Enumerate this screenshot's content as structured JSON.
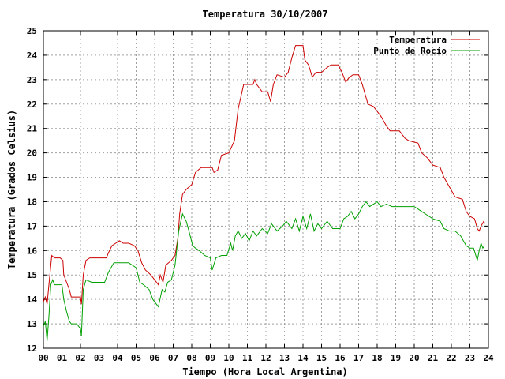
{
  "chart_data": {
    "type": "line",
    "title": "Temperatura 30/10/2007",
    "xlabel": "Tiempo (Hora Local Argentina)",
    "ylabel": "Temperatura (Grados Celsius)",
    "xlim": [
      0,
      24
    ],
    "ylim": [
      12,
      25
    ],
    "x_ticks": [
      0,
      1,
      2,
      3,
      4,
      5,
      6,
      7,
      8,
      9,
      10,
      11,
      12,
      13,
      14,
      15,
      16,
      17,
      18,
      19,
      20,
      21,
      22,
      23,
      24
    ],
    "x_tick_labels": [
      "00",
      "01",
      "02",
      "03",
      "04",
      "05",
      "06",
      "07",
      "08",
      "09",
      "10",
      "11",
      "12",
      "13",
      "14",
      "15",
      "16",
      "17",
      "18",
      "19",
      "20",
      "21",
      "22",
      "23",
      "24"
    ],
    "y_ticks": [
      12,
      13,
      14,
      15,
      16,
      17,
      18,
      19,
      20,
      21,
      22,
      23,
      24,
      25
    ],
    "y_tick_labels": [
      "12",
      "13",
      "14",
      "15",
      "16",
      "17",
      "18",
      "19",
      "20",
      "21",
      "22",
      "23",
      "24",
      "25"
    ],
    "grid": true,
    "legend_position": "top-right",
    "series": [
      {
        "name": "Temperatura",
        "color": "#cc0000",
        "points": [
          [
            0.0,
            13.9
          ],
          [
            0.1,
            14.1
          ],
          [
            0.2,
            13.8
          ],
          [
            0.3,
            14.6
          ],
          [
            0.45,
            15.8
          ],
          [
            0.6,
            15.7
          ],
          [
            0.9,
            15.7
          ],
          [
            1.05,
            15.6
          ],
          [
            1.1,
            15.0
          ],
          [
            1.25,
            14.7
          ],
          [
            1.4,
            14.4
          ],
          [
            1.5,
            14.1
          ],
          [
            1.7,
            14.1
          ],
          [
            2.0,
            14.1
          ],
          [
            2.05,
            13.8
          ],
          [
            2.15,
            15.0
          ],
          [
            2.3,
            15.6
          ],
          [
            2.5,
            15.7
          ],
          [
            3.0,
            15.7
          ],
          [
            3.4,
            15.7
          ],
          [
            3.5,
            15.9
          ],
          [
            3.7,
            16.2
          ],
          [
            3.9,
            16.3
          ],
          [
            4.1,
            16.4
          ],
          [
            4.3,
            16.3
          ],
          [
            4.6,
            16.3
          ],
          [
            4.9,
            16.2
          ],
          [
            5.1,
            16.0
          ],
          [
            5.3,
            15.5
          ],
          [
            5.5,
            15.2
          ],
          [
            5.8,
            15.0
          ],
          [
            6.0,
            14.8
          ],
          [
            6.2,
            14.6
          ],
          [
            6.3,
            15.0
          ],
          [
            6.45,
            14.7
          ],
          [
            6.6,
            15.4
          ],
          [
            6.9,
            15.6
          ],
          [
            7.1,
            15.8
          ],
          [
            7.25,
            16.5
          ],
          [
            7.35,
            17.5
          ],
          [
            7.5,
            18.3
          ],
          [
            7.7,
            18.5
          ],
          [
            8.0,
            18.7
          ],
          [
            8.2,
            19.2
          ],
          [
            8.5,
            19.4
          ],
          [
            8.8,
            19.4
          ],
          [
            9.1,
            19.4
          ],
          [
            9.2,
            19.2
          ],
          [
            9.4,
            19.3
          ],
          [
            9.6,
            19.9
          ],
          [
            10.0,
            20.0
          ],
          [
            10.3,
            20.5
          ],
          [
            10.5,
            21.8
          ],
          [
            10.8,
            22.8
          ],
          [
            11.3,
            22.8
          ],
          [
            11.4,
            23.0
          ],
          [
            11.5,
            22.8
          ],
          [
            11.8,
            22.5
          ],
          [
            12.1,
            22.5
          ],
          [
            12.25,
            22.1
          ],
          [
            12.4,
            22.8
          ],
          [
            12.6,
            23.2
          ],
          [
            13.0,
            23.1
          ],
          [
            13.2,
            23.3
          ],
          [
            13.4,
            23.9
          ],
          [
            13.6,
            24.4
          ],
          [
            14.0,
            24.4
          ],
          [
            14.1,
            23.8
          ],
          [
            14.3,
            23.6
          ],
          [
            14.5,
            23.1
          ],
          [
            14.7,
            23.3
          ],
          [
            15.0,
            23.3
          ],
          [
            15.3,
            23.5
          ],
          [
            15.5,
            23.6
          ],
          [
            15.9,
            23.6
          ],
          [
            16.1,
            23.3
          ],
          [
            16.3,
            22.9
          ],
          [
            16.5,
            23.1
          ],
          [
            16.7,
            23.2
          ],
          [
            17.0,
            23.2
          ],
          [
            17.2,
            22.8
          ],
          [
            17.5,
            22.0
          ],
          [
            17.8,
            21.9
          ],
          [
            18.2,
            21.5
          ],
          [
            18.5,
            21.1
          ],
          [
            18.7,
            20.9
          ],
          [
            19.2,
            20.9
          ],
          [
            19.5,
            20.6
          ],
          [
            19.7,
            20.5
          ],
          [
            20.2,
            20.4
          ],
          [
            20.4,
            20.0
          ],
          [
            20.7,
            19.8
          ],
          [
            21.0,
            19.5
          ],
          [
            21.4,
            19.4
          ],
          [
            21.6,
            19.0
          ],
          [
            21.9,
            18.6
          ],
          [
            22.2,
            18.2
          ],
          [
            22.6,
            18.1
          ],
          [
            22.8,
            17.6
          ],
          [
            23.0,
            17.4
          ],
          [
            23.25,
            17.3
          ],
          [
            23.4,
            16.9
          ],
          [
            23.5,
            16.8
          ],
          [
            23.6,
            17.0
          ],
          [
            23.75,
            17.2
          ],
          [
            23.8,
            17.1
          ]
        ]
      },
      {
        "name": "Punto de Rocío",
        "color": "#00a000",
        "points": [
          [
            0.0,
            12.9
          ],
          [
            0.1,
            13.1
          ],
          [
            0.2,
            12.3
          ],
          [
            0.3,
            13.3
          ],
          [
            0.4,
            14.6
          ],
          [
            0.5,
            14.8
          ],
          [
            0.6,
            14.6
          ],
          [
            1.0,
            14.6
          ],
          [
            1.1,
            14.0
          ],
          [
            1.25,
            13.5
          ],
          [
            1.4,
            13.1
          ],
          [
            1.5,
            13.0
          ],
          [
            1.8,
            13.0
          ],
          [
            2.0,
            12.8
          ],
          [
            2.05,
            12.5
          ],
          [
            2.15,
            14.4
          ],
          [
            2.3,
            14.8
          ],
          [
            2.6,
            14.7
          ],
          [
            3.3,
            14.7
          ],
          [
            3.5,
            15.1
          ],
          [
            3.8,
            15.5
          ],
          [
            4.2,
            15.5
          ],
          [
            4.6,
            15.5
          ],
          [
            5.0,
            15.3
          ],
          [
            5.2,
            14.7
          ],
          [
            5.4,
            14.6
          ],
          [
            5.7,
            14.4
          ],
          [
            5.9,
            14.0
          ],
          [
            6.2,
            13.7
          ],
          [
            6.4,
            14.4
          ],
          [
            6.55,
            14.3
          ],
          [
            6.7,
            14.7
          ],
          [
            6.9,
            14.8
          ],
          [
            7.1,
            15.4
          ],
          [
            7.3,
            16.8
          ],
          [
            7.5,
            17.5
          ],
          [
            7.7,
            17.2
          ],
          [
            7.85,
            16.8
          ],
          [
            8.05,
            16.2
          ],
          [
            8.2,
            16.1
          ],
          [
            8.4,
            16.0
          ],
          [
            8.7,
            15.8
          ],
          [
            9.0,
            15.7
          ],
          [
            9.1,
            15.2
          ],
          [
            9.3,
            15.7
          ],
          [
            9.6,
            15.8
          ],
          [
            9.9,
            15.8
          ],
          [
            10.1,
            16.3
          ],
          [
            10.2,
            16.0
          ],
          [
            10.35,
            16.6
          ],
          [
            10.5,
            16.8
          ],
          [
            10.7,
            16.5
          ],
          [
            10.9,
            16.7
          ],
          [
            11.1,
            16.4
          ],
          [
            11.3,
            16.8
          ],
          [
            11.5,
            16.6
          ],
          [
            11.8,
            16.9
          ],
          [
            12.1,
            16.7
          ],
          [
            12.3,
            17.1
          ],
          [
            12.6,
            16.8
          ],
          [
            12.9,
            17.0
          ],
          [
            13.1,
            17.2
          ],
          [
            13.4,
            16.9
          ],
          [
            13.6,
            17.3
          ],
          [
            13.8,
            16.8
          ],
          [
            14.0,
            17.4
          ],
          [
            14.2,
            16.9
          ],
          [
            14.4,
            17.5
          ],
          [
            14.6,
            16.8
          ],
          [
            14.8,
            17.1
          ],
          [
            15.0,
            16.9
          ],
          [
            15.3,
            17.2
          ],
          [
            15.6,
            16.9
          ],
          [
            16.0,
            16.9
          ],
          [
            16.2,
            17.3
          ],
          [
            16.4,
            17.4
          ],
          [
            16.6,
            17.6
          ],
          [
            16.8,
            17.3
          ],
          [
            17.0,
            17.5
          ],
          [
            17.2,
            17.8
          ],
          [
            17.4,
            18.0
          ],
          [
            17.6,
            17.8
          ],
          [
            17.8,
            17.9
          ],
          [
            18.0,
            18.0
          ],
          [
            18.2,
            17.8
          ],
          [
            18.5,
            17.9
          ],
          [
            18.8,
            17.8
          ],
          [
            19.2,
            17.8
          ],
          [
            19.6,
            17.8
          ],
          [
            20.0,
            17.8
          ],
          [
            20.4,
            17.6
          ],
          [
            20.8,
            17.4
          ],
          [
            21.0,
            17.3
          ],
          [
            21.4,
            17.2
          ],
          [
            21.6,
            16.9
          ],
          [
            21.9,
            16.8
          ],
          [
            22.2,
            16.8
          ],
          [
            22.5,
            16.6
          ],
          [
            22.8,
            16.2
          ],
          [
            23.0,
            16.1
          ],
          [
            23.2,
            16.1
          ],
          [
            23.4,
            15.6
          ],
          [
            23.5,
            16.0
          ],
          [
            23.6,
            16.3
          ],
          [
            23.7,
            16.1
          ],
          [
            23.8,
            16.2
          ]
        ]
      }
    ]
  }
}
